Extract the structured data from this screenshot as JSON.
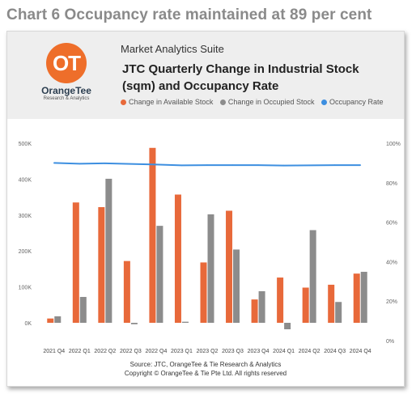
{
  "page_title": "Chart 6 Occupancy rate maintained at 89 per cent",
  "logo": {
    "mark": "OT",
    "name": "OrangeTee",
    "subtitle": "Research & Analytics"
  },
  "header": {
    "suite": "Market Analytics Suite",
    "title": "JTC Quarterly Change in Industrial Stock (sqm) and Occupancy Rate"
  },
  "source": {
    "line1": "Source: JTC, OrangeTee & Tie Research & Analytics",
    "line2": "Copyright © OrangeTee & Tie Pte Ltd. All rights reserved"
  },
  "colors": {
    "available": "#e8693a",
    "occupied": "#8c8c8c",
    "occupancy": "#3d8fe0",
    "brand": "#ee6e2a"
  },
  "chart_data": {
    "type": "bar",
    "categories": [
      "2021 Q4",
      "2022 Q1",
      "2022 Q2",
      "2022 Q3",
      "2022 Q4",
      "2023 Q1",
      "2023 Q2",
      "2023 Q3",
      "2023 Q4",
      "2024 Q1",
      "2024 Q2",
      "2024 Q3",
      "2024 Q4"
    ],
    "series": [
      {
        "name": "Change in Available Stock",
        "kind": "bar",
        "axis": "left",
        "values": [
          12000,
          335000,
          322000,
          172000,
          487000,
          357000,
          168000,
          312000,
          65000,
          126000,
          98000,
          106000,
          137000
        ]
      },
      {
        "name": "Change in Occupied Stock",
        "kind": "bar",
        "axis": "left",
        "values": [
          18000,
          72000,
          401000,
          -4000,
          270000,
          3000,
          302000,
          204000,
          88000,
          -18000,
          258000,
          58000,
          142000
        ]
      },
      {
        "name": "Occupancy Rate",
        "kind": "line",
        "axis": "right",
        "values": [
          90.0,
          89.6,
          89.8,
          89.5,
          89.2,
          88.8,
          88.9,
          88.9,
          88.9,
          88.7,
          88.8,
          88.9,
          88.9
        ]
      }
    ],
    "ylim_left": [
      -20000,
      500000
    ],
    "yticks_left": [
      "0K",
      "100K",
      "200K",
      "300K",
      "400K",
      "500K"
    ],
    "ylim_right": [
      0,
      100
    ],
    "yticks_right": [
      "0%",
      "20%",
      "40%",
      "60%",
      "80%",
      "100%"
    ],
    "legend_position": "top",
    "grid": false
  }
}
